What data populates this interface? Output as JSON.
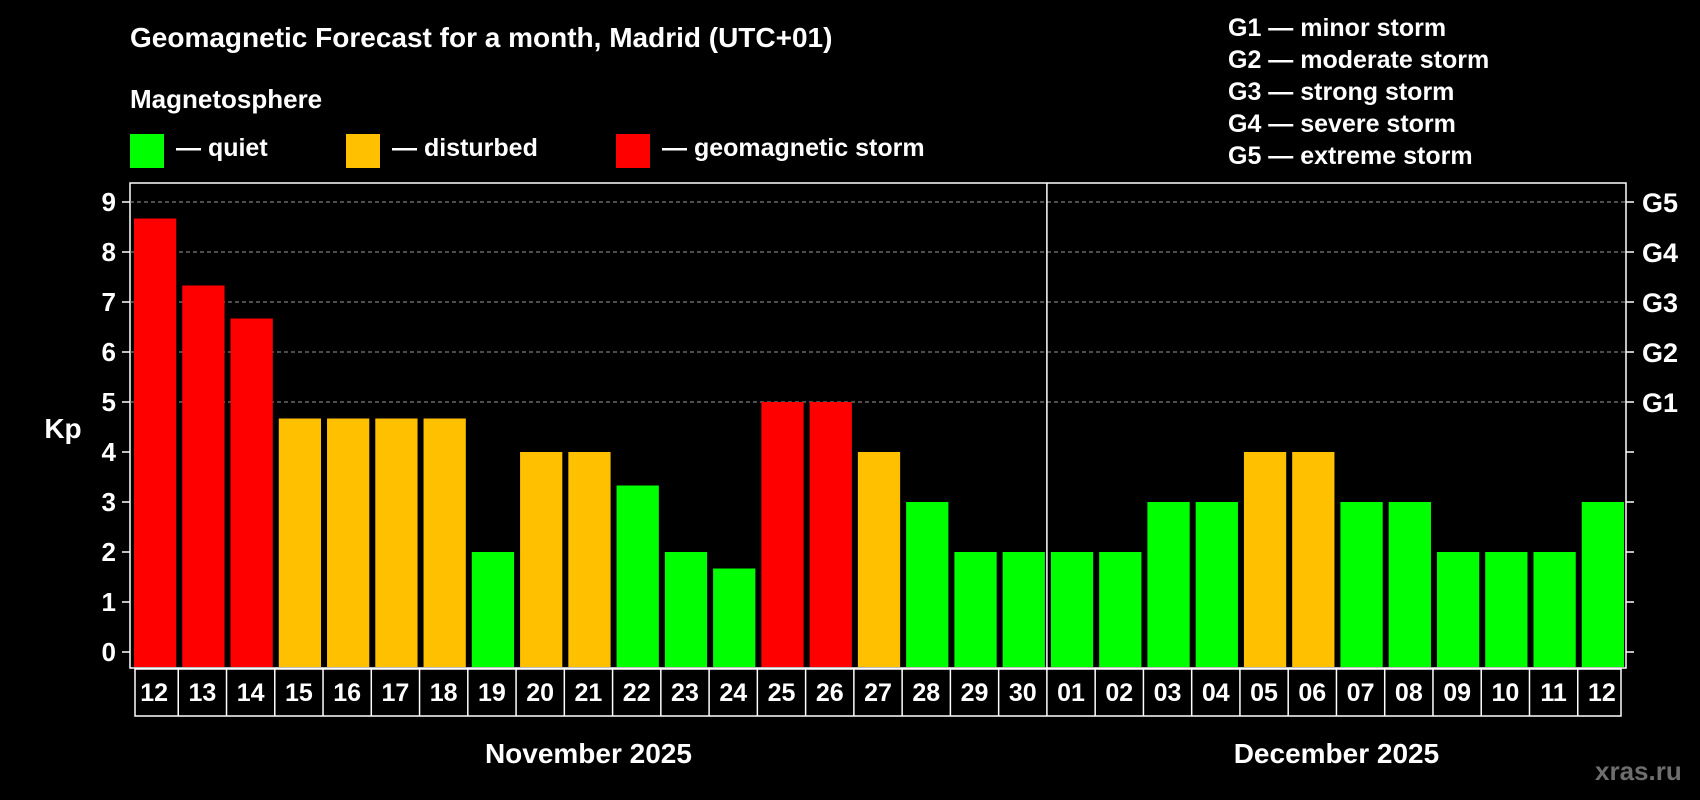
{
  "title": "Geomagnetic Forecast for a month, Madrid (UTC+01)",
  "magnetosphere_label": "Magnetosphere",
  "legend": [
    {
      "label": "— quiet",
      "color": "#00ff00"
    },
    {
      "label": "— disturbed",
      "color": "#ffc000"
    },
    {
      "label": "— geomagnetic storm",
      "color": "#ff0000"
    }
  ],
  "storm_scale": [
    "G1 — minor storm",
    "G2 — moderate storm",
    "G3 — strong storm",
    "G4 — severe storm",
    "G5 — extreme storm"
  ],
  "watermark": "xras.ru",
  "chart_data": {
    "type": "bar",
    "ylabel": "Kp",
    "ylim": [
      0,
      9
    ],
    "yticks": [
      "0",
      "1",
      "2",
      "3",
      "4",
      "5",
      "6",
      "7",
      "8",
      "9"
    ],
    "right_axis": [
      {
        "kp": 5,
        "label": "G1"
      },
      {
        "kp": 6,
        "label": "G2"
      },
      {
        "kp": 7,
        "label": "G3"
      },
      {
        "kp": 8,
        "label": "G4"
      },
      {
        "kp": 9,
        "label": "G5"
      }
    ],
    "grid": "dashed at Kp 5-9",
    "categories": [
      "12",
      "13",
      "14",
      "15",
      "16",
      "17",
      "18",
      "19",
      "20",
      "21",
      "22",
      "23",
      "24",
      "25",
      "26",
      "27",
      "28",
      "29",
      "30",
      "01",
      "02",
      "03",
      "04",
      "05",
      "06",
      "07",
      "08",
      "09",
      "10",
      "11",
      "12"
    ],
    "values": [
      8.67,
      7.33,
      6.67,
      4.67,
      4.67,
      4.67,
      4.67,
      2.0,
      4.0,
      4.0,
      3.33,
      2.0,
      1.67,
      5.0,
      5.0,
      4.0,
      3.0,
      2.0,
      2.0,
      2.0,
      2.0,
      3.0,
      3.0,
      4.0,
      4.0,
      3.0,
      3.0,
      2.0,
      2.0,
      2.0,
      3.0
    ],
    "colors": [
      "#ff0000",
      "#ff0000",
      "#ff0000",
      "#ffc000",
      "#ffc000",
      "#ffc000",
      "#ffc000",
      "#00ff00",
      "#ffc000",
      "#ffc000",
      "#00ff00",
      "#00ff00",
      "#00ff00",
      "#ff0000",
      "#ff0000",
      "#ffc000",
      "#00ff00",
      "#00ff00",
      "#00ff00",
      "#00ff00",
      "#00ff00",
      "#00ff00",
      "#00ff00",
      "#ffc000",
      "#ffc000",
      "#00ff00",
      "#00ff00",
      "#00ff00",
      "#00ff00",
      "#00ff00",
      "#00ff00"
    ],
    "months": [
      {
        "label": "November 2025",
        "start": 0,
        "count": 19
      },
      {
        "label": "December 2025",
        "start": 19,
        "count": 12
      }
    ]
  }
}
